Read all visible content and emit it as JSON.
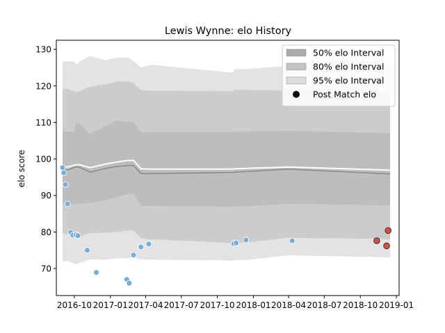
{
  "chart_data": {
    "type": "line",
    "title": "Lewis Wynne: elo History",
    "xlabel": "",
    "ylabel": "elo score",
    "xlim": [
      "2016-08-16",
      "2019-01-08"
    ],
    "ylim": [
      62.6,
      132.5
    ],
    "x_ticks": [
      "2016-10",
      "2017-01",
      "2017-04",
      "2017-07",
      "2017-10",
      "2018-01",
      "2018-04",
      "2018-07",
      "2018-10",
      "2019-01"
    ],
    "x_tick_dates": [
      "2016-10-01",
      "2017-01-01",
      "2017-04-01",
      "2017-07-01",
      "2017-10-01",
      "2018-01-01",
      "2018-04-01",
      "2018-07-01",
      "2018-10-01",
      "2019-01-01"
    ],
    "y_ticks": [
      70,
      80,
      90,
      100,
      110,
      120,
      130
    ],
    "grid": false,
    "legend_position": "top-right",
    "legend": [
      {
        "label": "50% elo Interval",
        "kind": "patch",
        "color": "#aaaaaa"
      },
      {
        "label": "80% elo Interval",
        "kind": "patch",
        "color": "#c4c4c4"
      },
      {
        "label": "95% elo Interval",
        "kind": "patch",
        "color": "#dddddd"
      },
      {
        "label": "Post Match elo",
        "kind": "marker",
        "color": "#000000"
      }
    ],
    "colors": {
      "band95": "#e3e3e3",
      "band80": "#cccccc",
      "band50": "#bdbdbd",
      "mean_line": "#ffffff",
      "median_line": "#8c8c8c",
      "point_blue": "#74aedc",
      "point_red": "#d9503a",
      "point_red_edge": "#333333"
    },
    "intervals": {
      "x": [
        "2016-09-01",
        "2016-09-15",
        "2016-10-01",
        "2016-10-05",
        "2016-10-15",
        "2016-11-10",
        "2016-12-20",
        "2017-01-15",
        "2017-02-15",
        "2017-03-01",
        "2017-03-20",
        "2017-04-15",
        "2017-11-10",
        "2017-11-15",
        "2017-12-10",
        "2018-03-31",
        "2018-11-25",
        "2018-12-16"
      ],
      "lo95": [
        72.0,
        72.0,
        71.3,
        71.2,
        71.5,
        72.5,
        72.4,
        72.7,
        72.9,
        73.0,
        72.5,
        72.4,
        72.2,
        72.3,
        72.3,
        73.6,
        73.1,
        73.0
      ],
      "lo80": [
        79.5,
        79.5,
        78.4,
        78.3,
        78.8,
        79.7,
        79.8,
        80.0,
        80.4,
        80.4,
        78.3,
        78.0,
        77.0,
        77.1,
        77.1,
        78.4,
        78.1,
        78.0
      ],
      "lo50": [
        87.8,
        87.8,
        87.6,
        87.6,
        87.8,
        87.9,
        88.7,
        89.4,
        90.4,
        90.5,
        87.1,
        87.1,
        86.9,
        87.0,
        87.0,
        87.7,
        87.3,
        87.2
      ],
      "median": [
        97.0,
        97.0,
        97.7,
        97.8,
        97.7,
        96.4,
        97.4,
        97.9,
        98.2,
        98.2,
        96.0,
        96.0,
        96.3,
        96.4,
        96.5,
        97.2,
        96.0,
        95.9
      ],
      "mean": [
        97.8,
        97.8,
        98.3,
        98.4,
        98.4,
        97.6,
        98.6,
        99.1,
        99.6,
        99.6,
        97.3,
        97.2,
        97.2,
        97.3,
        97.4,
        97.8,
        97.0,
        96.9
      ],
      "hi50": [
        107.4,
        107.4,
        107.5,
        109.8,
        109.7,
        106.8,
        109.0,
        110.5,
        110.2,
        110.1,
        107.3,
        107.3,
        107.4,
        107.5,
        107.5,
        107.7,
        107.1,
        107.0
      ],
      "hi80": [
        119.2,
        119.2,
        118.4,
        118.3,
        118.5,
        119.8,
        120.4,
        121.2,
        121.2,
        120.8,
        118.8,
        118.7,
        118.5,
        118.9,
        118.9,
        118.7,
        118.6,
        118.5
      ],
      "hi95": [
        126.7,
        126.7,
        126.7,
        125.8,
        126.7,
        128.2,
        127.0,
        127.7,
        127.7,
        126.8,
        125.1,
        125.8,
        123.6,
        124.6,
        124.6,
        125.5,
        125.6,
        125.6
      ]
    },
    "series": [
      {
        "name": "Post Match elo",
        "x": [
          "2016-09-01",
          "2016-09-04",
          "2016-09-08",
          "2016-09-14",
          "2016-09-22",
          "2016-09-27",
          "2016-10-05",
          "2016-10-10",
          "2016-11-03",
          "2016-11-26",
          "2017-02-12",
          "2017-02-18",
          "2017-03-01",
          "2017-03-20",
          "2017-04-09",
          "2017-11-12",
          "2017-11-18",
          "2017-12-13",
          "2018-04-10",
          "2018-11-12",
          "2018-12-07",
          "2018-12-11"
        ],
        "values": [
          97.6,
          96.2,
          93.0,
          87.7,
          79.9,
          79.1,
          79.2,
          79.0,
          75.0,
          68.9,
          67.0,
          66.0,
          73.7,
          75.9,
          76.7,
          76.8,
          77.0,
          77.8,
          77.6,
          77.6,
          76.2,
          80.4
        ],
        "colors": [
          "#74aedc",
          "#74aedc",
          "#74aedc",
          "#74aedc",
          "#74aedc",
          "#74aedc",
          "#74aedc",
          "#74aedc",
          "#74aedc",
          "#74aedc",
          "#74aedc",
          "#74aedc",
          "#74aedc",
          "#74aedc",
          "#74aedc",
          "#74aedc",
          "#74aedc",
          "#74aedc",
          "#74aedc",
          "#d9503a",
          "#d9503a",
          "#d9503a"
        ]
      }
    ]
  }
}
